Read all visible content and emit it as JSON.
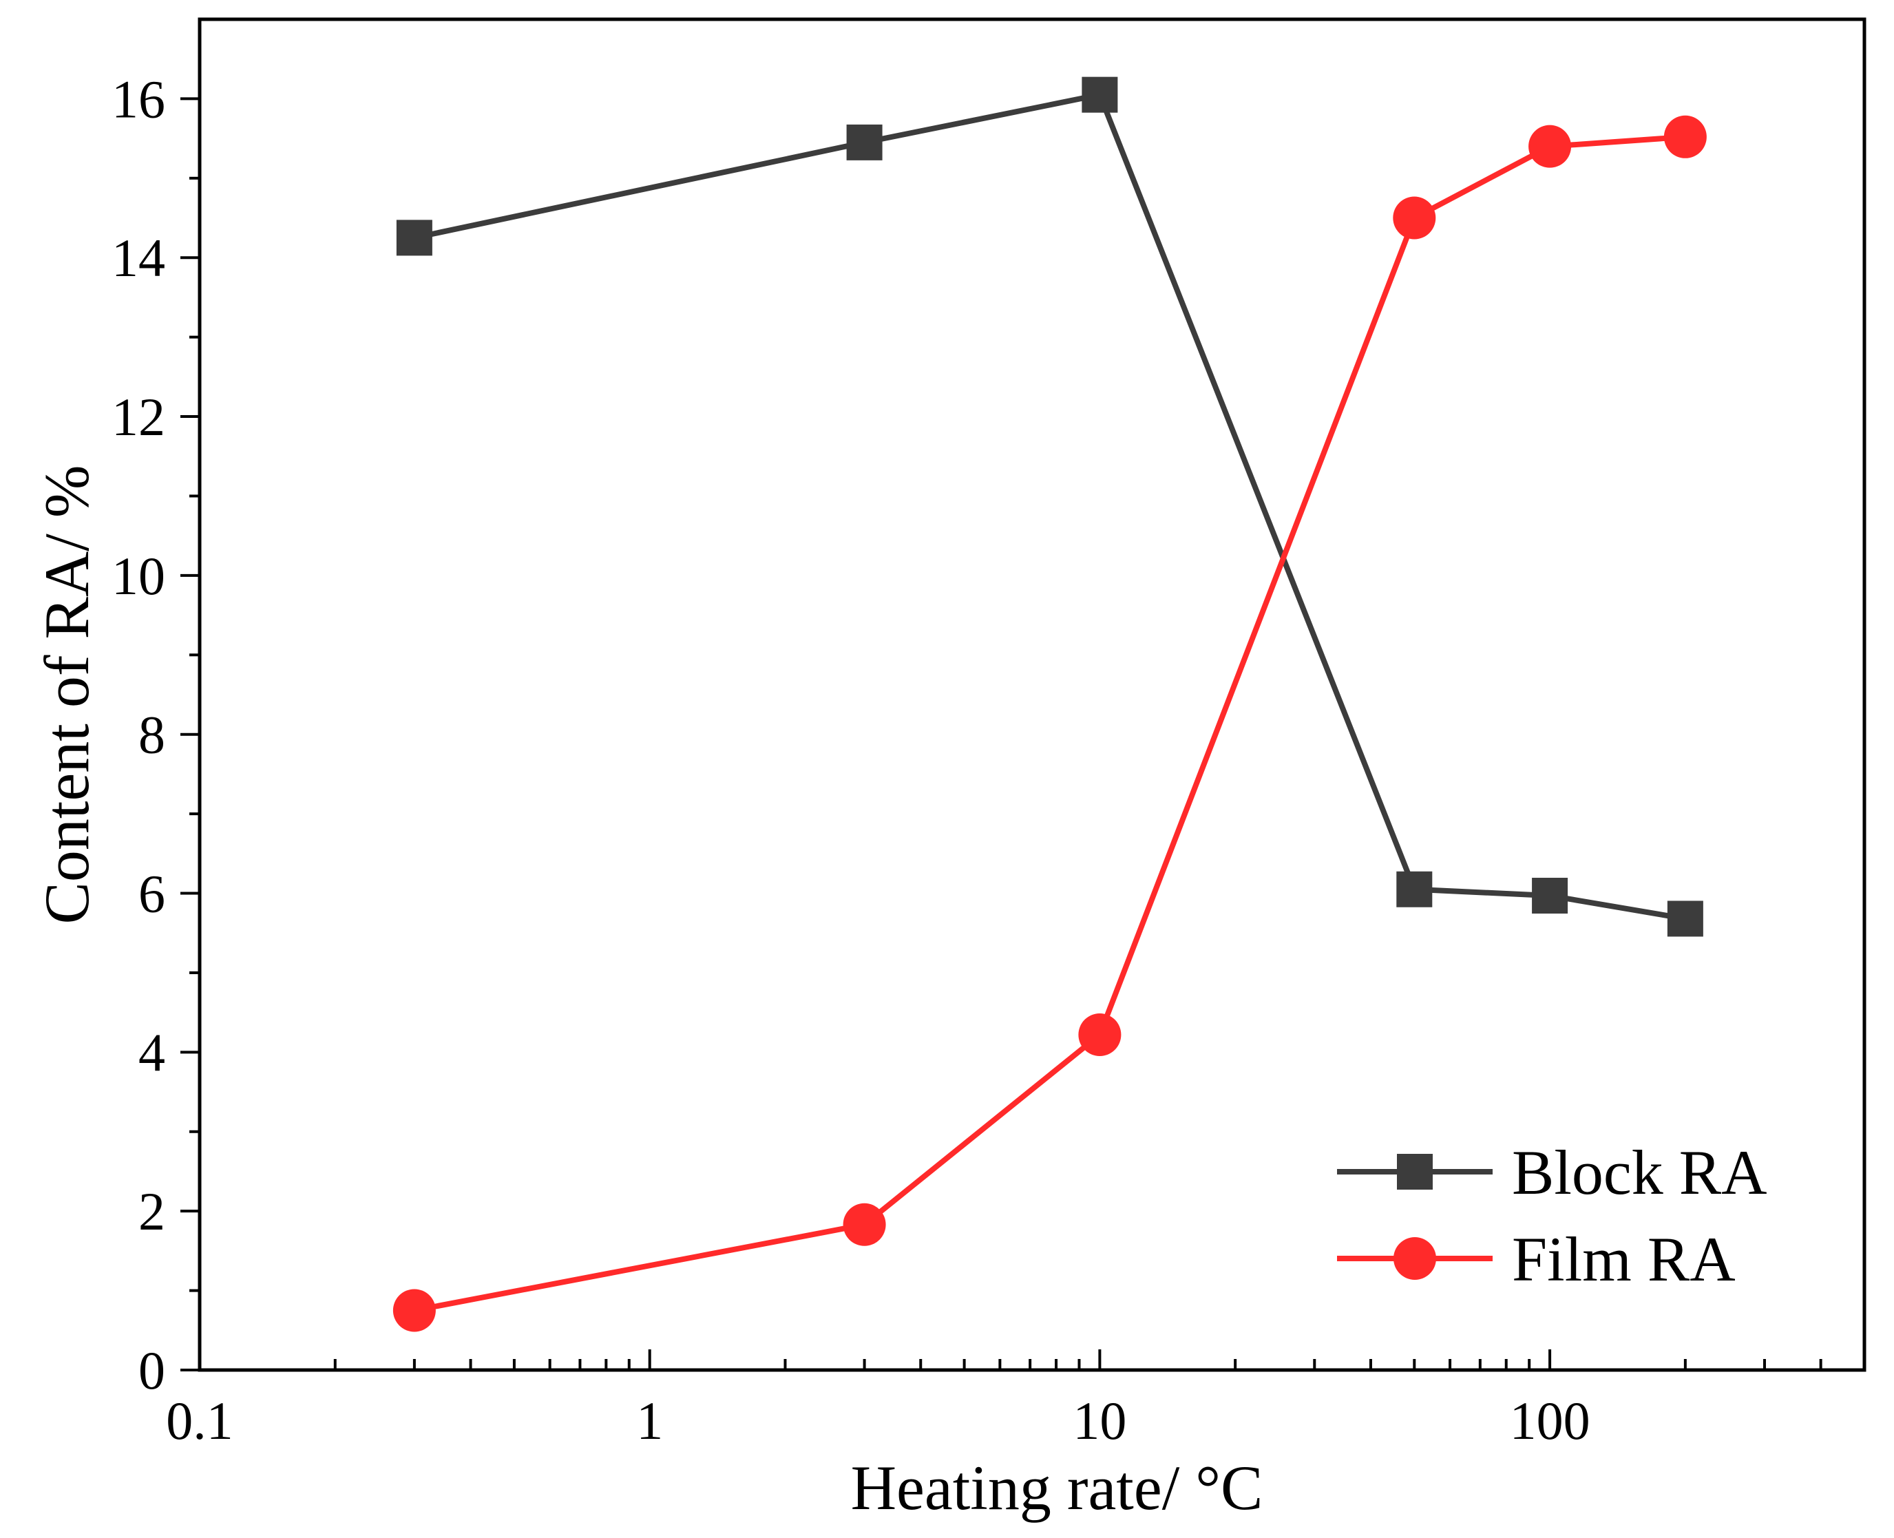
{
  "chart_data": {
    "type": "line",
    "xscale": "log",
    "xlabel": "Heating rate/ °C",
    "ylabel": "Content of RA/ %",
    "xlim": [
      0.1,
      500
    ],
    "ylim": [
      0,
      17
    ],
    "x_ticks": [
      {
        "value": 0.1,
        "label": "0.1"
      },
      {
        "value": 1,
        "label": "1"
      },
      {
        "value": 10,
        "label": "10"
      },
      {
        "value": 100,
        "label": "100"
      }
    ],
    "y_ticks": [
      {
        "value": 0,
        "label": "0"
      },
      {
        "value": 2,
        "label": "2"
      },
      {
        "value": 4,
        "label": "4"
      },
      {
        "value": 6,
        "label": "6"
      },
      {
        "value": 8,
        "label": "8"
      },
      {
        "value": 10,
        "label": "10"
      },
      {
        "value": 12,
        "label": "12"
      },
      {
        "value": 14,
        "label": "14"
      },
      {
        "value": 16,
        "label": "16"
      }
    ],
    "x": [
      0.3,
      3,
      10,
      50,
      100,
      200
    ],
    "series": [
      {
        "name": "Block RA",
        "marker": "square",
        "color": "#3c3c3c",
        "values": [
          14.25,
          15.45,
          16.05,
          6.05,
          5.97,
          5.68
        ]
      },
      {
        "name": "Film RA",
        "marker": "circle",
        "color": "#ff2a2a",
        "values": [
          0.75,
          1.83,
          4.22,
          14.5,
          15.4,
          15.52
        ]
      }
    ],
    "legend": {
      "position": "bottom-right"
    },
    "grid": false
  }
}
